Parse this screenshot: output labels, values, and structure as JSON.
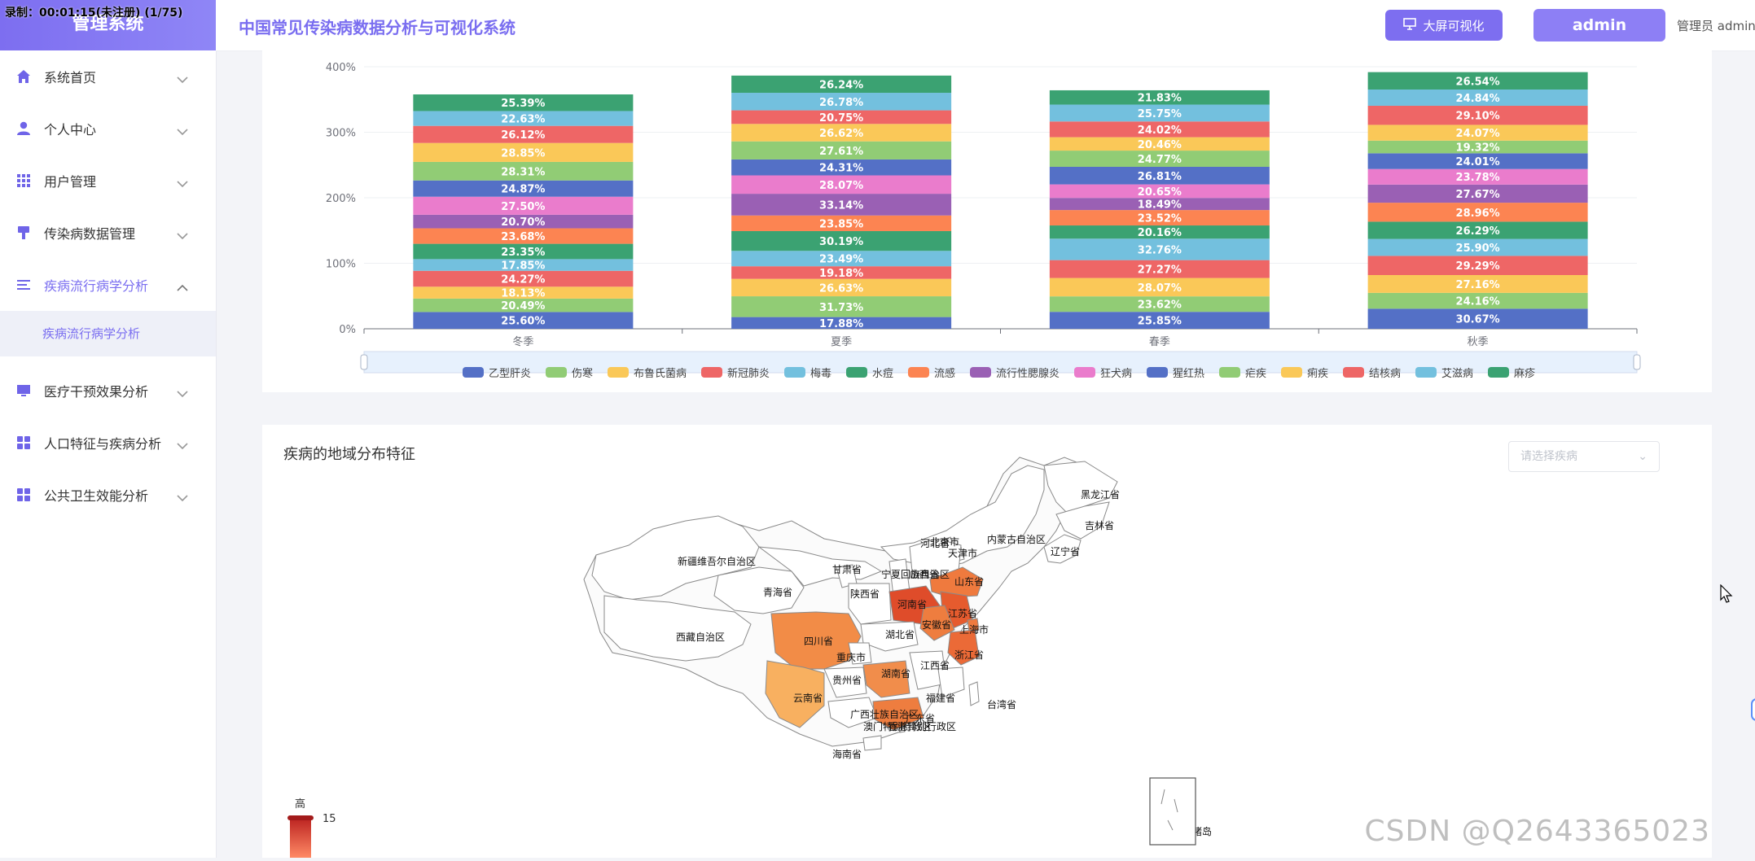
{
  "sidebar": {
    "logo": "管理系统",
    "recording": "录制：00:01:15(未注册) (1/75)",
    "items": [
      {
        "label": "系统首页",
        "icon": "home-icon",
        "open": false
      },
      {
        "label": "个人中心",
        "icon": "user-icon",
        "open": false
      },
      {
        "label": "用户管理",
        "icon": "grid-icon",
        "open": false
      },
      {
        "label": "传染病数据管理",
        "icon": "brush-icon",
        "open": false
      },
      {
        "label": "疾病流行病学分析",
        "icon": "list-icon",
        "open": true
      },
      {
        "label": "医疗干预效果分析",
        "icon": "monitor-icon",
        "open": false
      },
      {
        "label": "人口特征与疾病分析",
        "icon": "apps-icon",
        "open": false
      },
      {
        "label": "公共卫生效能分析",
        "icon": "apps-icon",
        "open": false
      }
    ],
    "submenu": {
      "label": "疾病流行病学分析"
    }
  },
  "header": {
    "title": "中国常见传染病数据分析与可视化系统",
    "bigscreen_label": "大屏可视化",
    "admin_label": "admin",
    "role_label": "管理员 admin"
  },
  "chart_data": {
    "type": "bar",
    "stacked": true,
    "categories": [
      "冬季",
      "夏季",
      "春季",
      "秋季"
    ],
    "yticks": [
      "0%",
      "100%",
      "200%",
      "300%",
      "400%"
    ],
    "ylim": [
      0,
      400
    ],
    "series": [
      {
        "name": "乙型肝炎",
        "color": "#5470c6",
        "values": [
          25.6,
          17.88,
          25.85,
          30.67
        ]
      },
      {
        "name": "伤寒",
        "color": "#91cc75",
        "values": [
          20.49,
          31.73,
          23.62,
          24.16
        ]
      },
      {
        "name": "布鲁氏菌病",
        "color": "#fac858",
        "values": [
          18.13,
          26.63,
          28.07,
          27.16
        ]
      },
      {
        "name": "新冠肺炎",
        "color": "#ee6666",
        "values": [
          24.27,
          19.18,
          27.27,
          29.29
        ]
      },
      {
        "name": "梅毒",
        "color": "#73c0de",
        "values": [
          17.85,
          23.49,
          32.76,
          25.9
        ]
      },
      {
        "name": "水痘",
        "color": "#3ba272",
        "values": [
          23.35,
          30.19,
          20.16,
          26.29
        ]
      },
      {
        "name": "流感",
        "color": "#fc8452",
        "values": [
          23.68,
          23.85,
          23.52,
          28.96
        ]
      },
      {
        "name": "流行性腮腺炎",
        "color": "#9a60b4",
        "values": [
          20.7,
          33.14,
          18.49,
          27.67
        ]
      },
      {
        "name": "狂犬病",
        "color": "#ea7ccc",
        "values": [
          27.5,
          28.07,
          20.65,
          23.78
        ]
      },
      {
        "name": "猩红热",
        "color": "#5470c6",
        "values": [
          24.87,
          24.31,
          26.81,
          24.01
        ]
      },
      {
        "name": "疟疾",
        "color": "#91cc75",
        "values": [
          28.31,
          27.61,
          24.77,
          19.32
        ]
      },
      {
        "name": "痢疾",
        "color": "#fac858",
        "values": [
          28.85,
          26.62,
          20.46,
          24.07
        ]
      },
      {
        "name": "结核病",
        "color": "#ee6666",
        "values": [
          26.12,
          20.75,
          24.02,
          29.1
        ]
      },
      {
        "name": "艾滋病",
        "color": "#73c0de",
        "values": [
          22.63,
          26.78,
          25.75,
          24.84
        ]
      },
      {
        "name": "麻疹",
        "color": "#3ba272",
        "values": [
          25.39,
          26.24,
          21.83,
          26.54
        ]
      }
    ]
  },
  "map": {
    "title": "疾病的地域分布特征",
    "select_placeholder": "请选择疾病",
    "visualmap": {
      "high_label": "高",
      "max": "15"
    },
    "provinces": [
      {
        "name": "黑龙江省",
        "fill": "#ffffff"
      },
      {
        "name": "吉林省",
        "fill": "#ffffff"
      },
      {
        "name": "辽宁省",
        "fill": "#ffffff"
      },
      {
        "name": "内蒙古自治区",
        "fill": "#ffffff"
      },
      {
        "name": "新疆维吾尔自治区",
        "fill": "#ffffff"
      },
      {
        "name": "西藏自治区",
        "fill": "#ffffff"
      },
      {
        "name": "青海省",
        "fill": "#ffffff"
      },
      {
        "name": "甘肃省",
        "fill": "#ffffff"
      },
      {
        "name": "宁夏回族自治区",
        "fill": "#ffffff"
      },
      {
        "name": "山西省",
        "fill": "#ffffff"
      },
      {
        "name": "陕西省",
        "fill": "#ffffff"
      },
      {
        "name": "北京市",
        "fill": "#ffffff"
      },
      {
        "name": "天津市",
        "fill": "#ffffff"
      },
      {
        "name": "河北省",
        "fill": "#ffffff"
      },
      {
        "name": "山东省",
        "fill": "#ef7a3e"
      },
      {
        "name": "河南省",
        "fill": "#df4c2a"
      },
      {
        "name": "江苏省",
        "fill": "#e65b2e"
      },
      {
        "name": "安徽省",
        "fill": "#ee7d3f"
      },
      {
        "name": "上海市",
        "fill": "#ef7a3e"
      },
      {
        "name": "浙江省",
        "fill": "#eb6a37"
      },
      {
        "name": "湖北省",
        "fill": "#ffffff"
      },
      {
        "name": "四川省",
        "fill": "#f28c47"
      },
      {
        "name": "重庆市",
        "fill": "#ffffff"
      },
      {
        "name": "湖南省",
        "fill": "#f18d4b"
      },
      {
        "name": "江西省",
        "fill": "#ffffff"
      },
      {
        "name": "福建省",
        "fill": "#ffffff"
      },
      {
        "name": "贵州省",
        "fill": "#ffffff"
      },
      {
        "name": "云南省",
        "fill": "#f8b060"
      },
      {
        "name": "广西壮族自治区",
        "fill": "#ffffff"
      },
      {
        "name": "广东省",
        "fill": "#ee7d3f"
      },
      {
        "name": "香港特别行政区",
        "fill": "#ffffff"
      },
      {
        "name": "澳门特别行政区",
        "fill": "#ffffff"
      },
      {
        "name": "台湾省",
        "fill": "#ffffff"
      },
      {
        "name": "海南省",
        "fill": "#ffffff"
      },
      {
        "name": "南海诸岛",
        "fill": "#ffffff"
      }
    ]
  },
  "watermark": "CSDN @Q2643365023"
}
